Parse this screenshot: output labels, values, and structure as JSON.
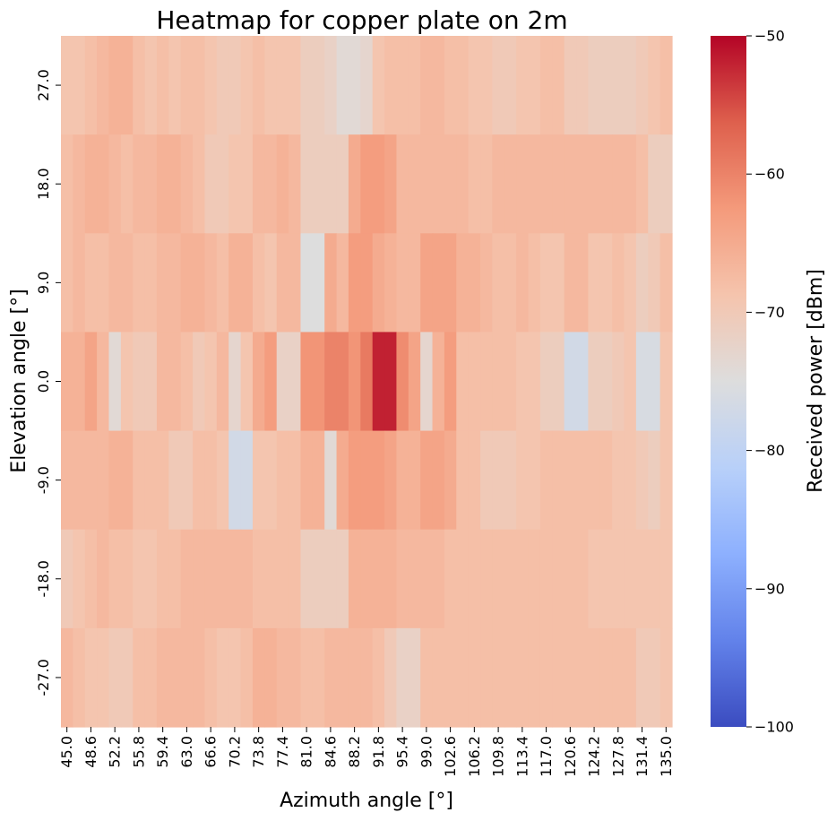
{
  "chart_data": {
    "type": "heatmap",
    "title": "Heatmap for copper plate on 2m",
    "xlabel": "Azimuth angle [°]",
    "ylabel": "Elevation angle [°]",
    "colorbar_label": "Received power [dBm]",
    "colormap": "coolwarm",
    "vmin": -100,
    "vmax": -50,
    "colorbar_ticks": [
      "−50",
      "−60",
      "−70",
      "−80",
      "−90",
      "−100"
    ],
    "colorbar_tick_values": [
      -50,
      -60,
      -70,
      -80,
      -90,
      -100
    ],
    "x_tick_labels": [
      "45.0",
      "48.6",
      "52.2",
      "55.8",
      "59.4",
      "63.0",
      "66.6",
      "70.2",
      "73.8",
      "77.4",
      "81.0",
      "84.6",
      "88.2",
      "91.8",
      "95.4",
      "99.0",
      "102.6",
      "106.2",
      "109.8",
      "113.4",
      "117.0",
      "120.6",
      "124.2",
      "127.8",
      "131.4",
      "135.0"
    ],
    "y_tick_labels": [
      "27.0",
      "18.0",
      "9.0",
      "0.0",
      "-9.0",
      "-18.0",
      "-27.0"
    ],
    "x": [
      45.0,
      46.8,
      48.6,
      50.4,
      52.2,
      54.0,
      55.8,
      57.6,
      59.4,
      61.2,
      63.0,
      64.8,
      66.6,
      68.4,
      70.2,
      72.0,
      73.8,
      75.6,
      77.4,
      79.2,
      81.0,
      82.8,
      84.6,
      86.4,
      88.2,
      90.0,
      91.8,
      93.6,
      95.4,
      97.2,
      99.0,
      100.8,
      102.6,
      104.4,
      106.2,
      108.0,
      109.8,
      111.6,
      113.4,
      115.2,
      117.0,
      118.8,
      120.6,
      122.4,
      124.2,
      126.0,
      127.8,
      129.6,
      131.4,
      133.2,
      135.0
    ],
    "y": [
      27.0,
      18.0,
      9.0,
      0.0,
      -9.0,
      -18.0,
      -27.0
    ],
    "values": [
      [
        -69,
        -69,
        -68,
        -67,
        -66,
        -66,
        -68,
        -69,
        -68,
        -69,
        -68,
        -68,
        -69,
        -70,
        -70,
        -69,
        -68,
        -69,
        -69,
        -69,
        -71,
        -71,
        -72,
        -74,
        -74,
        -73,
        -69,
        -68,
        -68,
        -68,
        -67,
        -67,
        -68,
        -68,
        -69,
        -69,
        -70,
        -70,
        -69,
        -69,
        -68,
        -68,
        -70,
        -70,
        -71,
        -71,
        -71,
        -71,
        -70,
        -69,
        -68
      ],
      [
        -68,
        -67,
        -66,
        -66,
        -67,
        -68,
        -67,
        -67,
        -66,
        -66,
        -67,
        -68,
        -70,
        -70,
        -69,
        -69,
        -67,
        -67,
        -66,
        -67,
        -71,
        -71,
        -71,
        -71,
        -65,
        -63,
        -63,
        -64,
        -67,
        -67,
        -67,
        -67,
        -67,
        -67,
        -68,
        -68,
        -67,
        -67,
        -67,
        -67,
        -67,
        -67,
        -67,
        -67,
        -67,
        -67,
        -67,
        -67,
        -68,
        -71,
        -71
      ],
      [
        -68,
        -67,
        -68,
        -68,
        -67,
        -67,
        -68,
        -68,
        -67,
        -67,
        -66,
        -66,
        -67,
        -68,
        -66,
        -66,
        -68,
        -69,
        -67,
        -67,
        -75,
        -75,
        -65,
        -67,
        -63,
        -63,
        -65,
        -66,
        -67,
        -67,
        -64,
        -64,
        -64,
        -66,
        -66,
        -67,
        -68,
        -68,
        -67,
        -68,
        -69,
        -69,
        -67,
        -67,
        -69,
        -69,
        -68,
        -69,
        -71,
        -70,
        -68
      ],
      [
        -66,
        -66,
        -64,
        -67,
        -74,
        -69,
        -70,
        -70,
        -67,
        -67,
        -68,
        -70,
        -69,
        -67,
        -73,
        -69,
        -65,
        -63,
        -72,
        -72,
        -62,
        -62,
        -60,
        -60,
        -62,
        -59,
        -52,
        -52,
        -61,
        -64,
        -73,
        -66,
        -63,
        -68,
        -68,
        -68,
        -68,
        -68,
        -69,
        -69,
        -71,
        -71,
        -77,
        -77,
        -71,
        -71,
        -70,
        -69,
        -76,
        -76,
        -69
      ],
      [
        -67,
        -67,
        -67,
        -67,
        -66,
        -66,
        -68,
        -68,
        -68,
        -70,
        -70,
        -68,
        -68,
        -69,
        -77,
        -77,
        -69,
        -69,
        -68,
        -68,
        -66,
        -66,
        -74,
        -65,
        -63,
        -63,
        -63,
        -64,
        -66,
        -66,
        -64,
        -64,
        -65,
        -68,
        -68,
        -70,
        -70,
        -70,
        -69,
        -69,
        -68,
        -68,
        -68,
        -68,
        -68,
        -68,
        -69,
        -69,
        -70,
        -71,
        -69
      ],
      [
        -70,
        -69,
        -68,
        -67,
        -68,
        -68,
        -69,
        -69,
        -68,
        -68,
        -67,
        -67,
        -67,
        -67,
        -67,
        -67,
        -68,
        -68,
        -68,
        -68,
        -71,
        -71,
        -71,
        -71,
        -66,
        -66,
        -66,
        -66,
        -67,
        -67,
        -67,
        -67,
        -68,
        -68,
        -68,
        -68,
        -68,
        -68,
        -68,
        -68,
        -68,
        -68,
        -68,
        -68,
        -69,
        -69,
        -69,
        -69,
        -69,
        -69,
        -69
      ],
      [
        -67,
        -68,
        -69,
        -69,
        -70,
        -70,
        -68,
        -68,
        -67,
        -67,
        -67,
        -67,
        -68,
        -69,
        -69,
        -68,
        -66,
        -66,
        -67,
        -67,
        -68,
        -68,
        -67,
        -67,
        -67,
        -67,
        -68,
        -70,
        -72,
        -72,
        -68,
        -68,
        -68,
        -68,
        -68,
        -68,
        -68,
        -68,
        -68,
        -68,
        -68,
        -68,
        -68,
        -68,
        -68,
        -68,
        -68,
        -68,
        -70,
        -70,
        -69
      ]
    ]
  }
}
